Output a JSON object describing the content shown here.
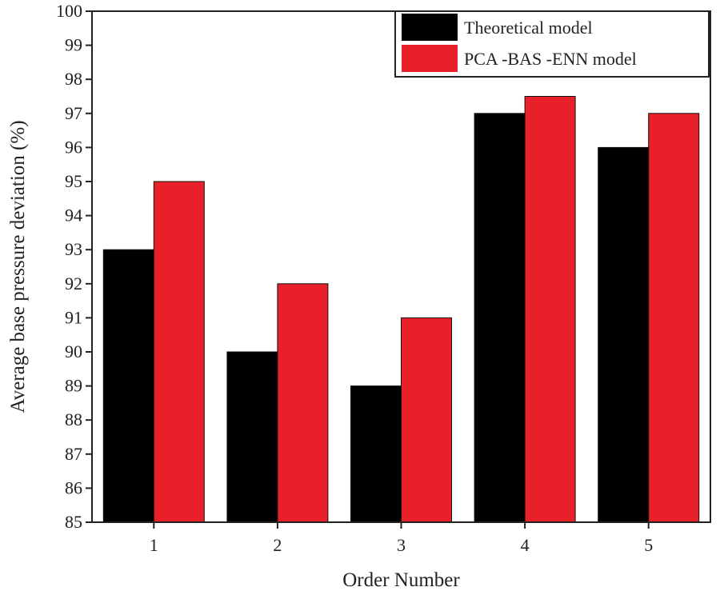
{
  "chart_data": {
    "type": "bar",
    "categories": [
      "1",
      "2",
      "3",
      "4",
      "5"
    ],
    "series": [
      {
        "name": "Theoretical model",
        "values": [
          93,
          90,
          89,
          97,
          96
        ],
        "color": "#000000"
      },
      {
        "name": "PCA -BAS -ENN model",
        "values": [
          95,
          92,
          91,
          97.5,
          97
        ],
        "color": "#e8202a"
      }
    ],
    "xlabel": "Order Number",
    "ylabel": "Average base pressure deviation (%)",
    "ylim": [
      85,
      100
    ],
    "yticks": [
      "85",
      "86",
      "87",
      "88",
      "89",
      "90",
      "91",
      "92",
      "93",
      "94",
      "95",
      "96",
      "97",
      "98",
      "99",
      "100"
    ],
    "grid": false,
    "legend_position": "top-right"
  }
}
